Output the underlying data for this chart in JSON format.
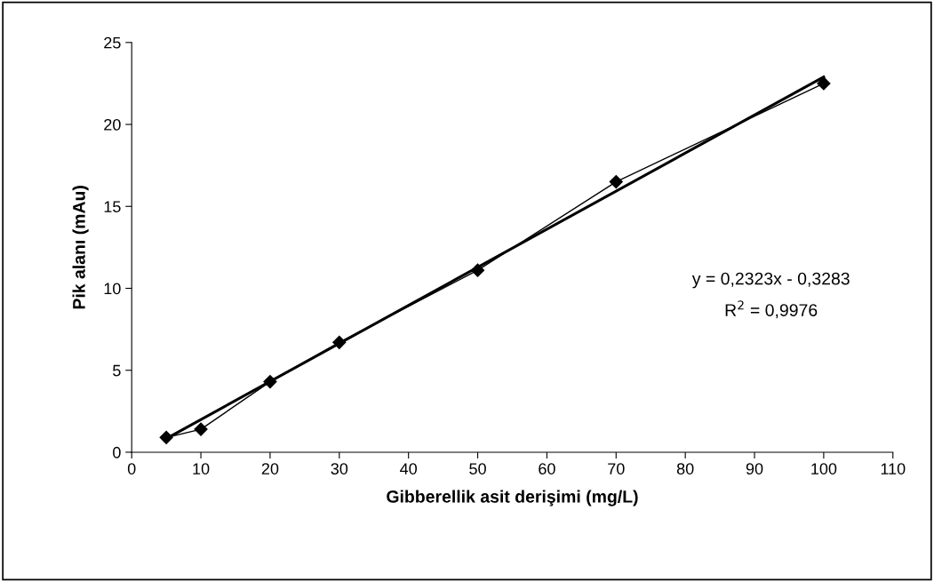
{
  "chart_data": {
    "type": "line",
    "xlabel": "Gibberellik asit derişimi (mg/L)",
    "ylabel": "Pik alanı (mAu)",
    "xlim": [
      0,
      110
    ],
    "xticks": [
      0,
      10,
      20,
      30,
      40,
      50,
      60,
      70,
      80,
      90,
      100,
      110
    ],
    "ylim": [
      0,
      25
    ],
    "yticks": [
      0,
      5,
      10,
      15,
      20,
      25
    ],
    "grid": false,
    "legend": false,
    "series": [
      {
        "color": "#000000",
        "marker": "diamond",
        "line_style": "solid",
        "x": [
          5,
          10,
          20,
          30,
          50,
          70,
          100
        ],
        "values": [
          0.9,
          1.4,
          4.3,
          6.7,
          11.1,
          16.5,
          22.5
        ]
      },
      {
        "color": "#000000",
        "marker": "none",
        "line_style": "solid",
        "x": [
          5,
          100
        ],
        "values": [
          0.83,
          22.9
        ]
      }
    ],
    "annotations": [
      "y = 0,2323x - 0,3283",
      "R$^{2}$ = 0,9976"
    ]
  }
}
